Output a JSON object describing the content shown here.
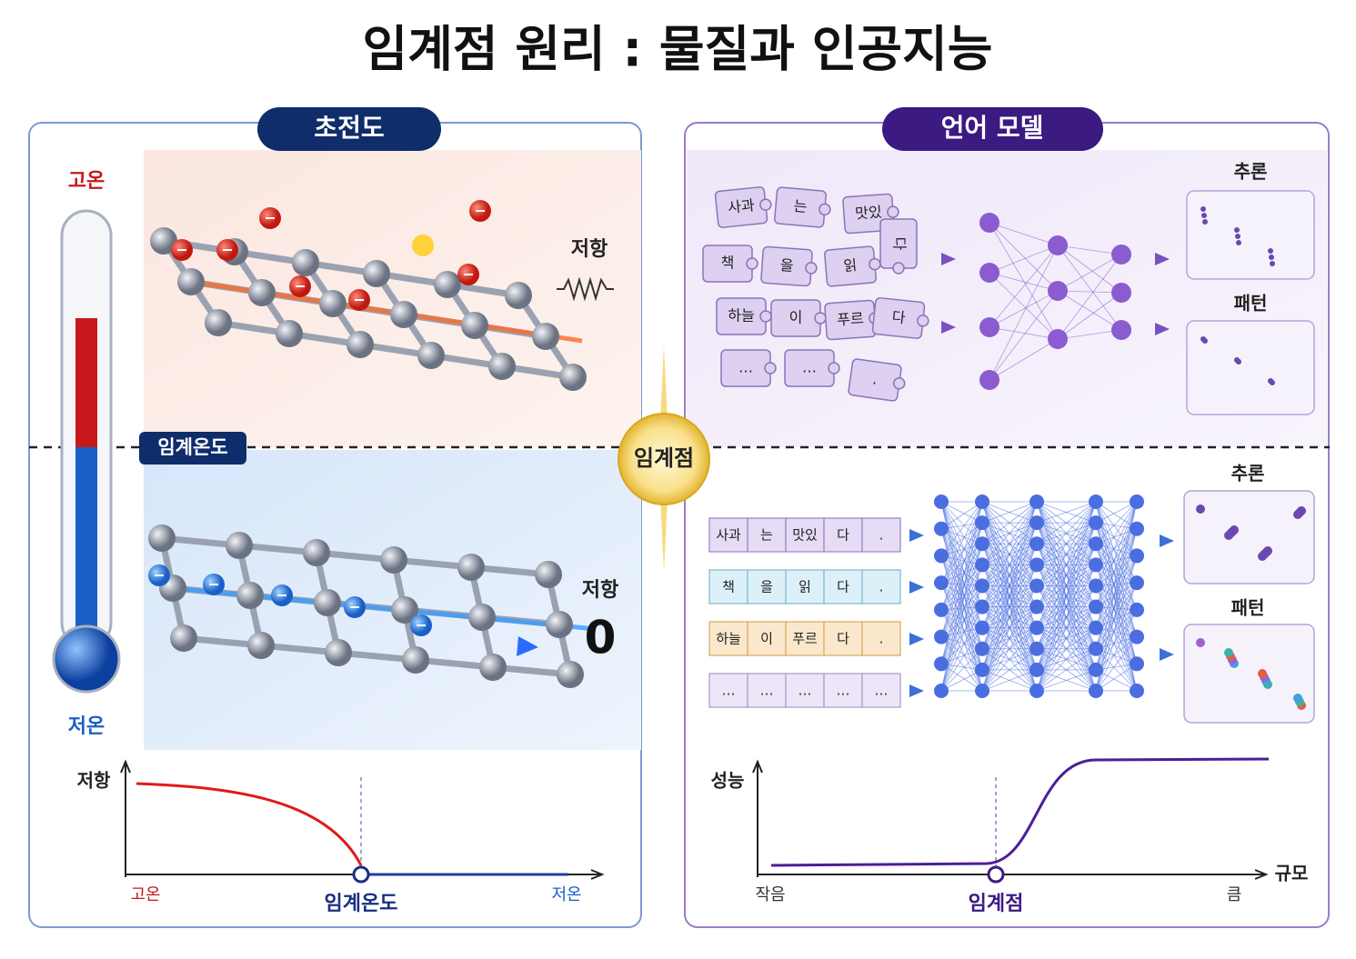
{
  "title": "임계점 원리 : 물질과 인공지능",
  "left_panel": {
    "header": "초전도",
    "high_temp": "고온",
    "low_temp": "저온",
    "critical_label": "임계온도",
    "top_resistance": "저항",
    "bottom_resistance": "저항",
    "bottom_resistance_value": "0",
    "graph": {
      "y_label": "저항",
      "x_start": "고온",
      "x_mid": "임계온도",
      "x_end": "저온"
    }
  },
  "center_label": "임계점",
  "right_panel": {
    "header": "언어 모델",
    "puzzle_tokens": [
      "사과",
      "는",
      "맛있",
      "다",
      "책",
      "을",
      "읽",
      "하늘",
      "이",
      "푸르",
      "다",
      "…",
      "…",
      "."
    ],
    "top_outputs": [
      "추론",
      "패턴"
    ],
    "token_rows": [
      [
        "사과",
        "는",
        "맛있",
        "다",
        "."
      ],
      [
        "책",
        "을",
        "읽",
        "다",
        "."
      ],
      [
        "하늘",
        "이",
        "푸르",
        "다",
        "."
      ],
      [
        "…",
        "…",
        "…",
        "…",
        "…"
      ]
    ],
    "bottom_outputs": [
      "추론",
      "패턴"
    ],
    "graph": {
      "y_label": "성능",
      "x_label": "규모",
      "x_start": "작음",
      "x_mid": "임계점",
      "x_end": "큼"
    }
  }
}
